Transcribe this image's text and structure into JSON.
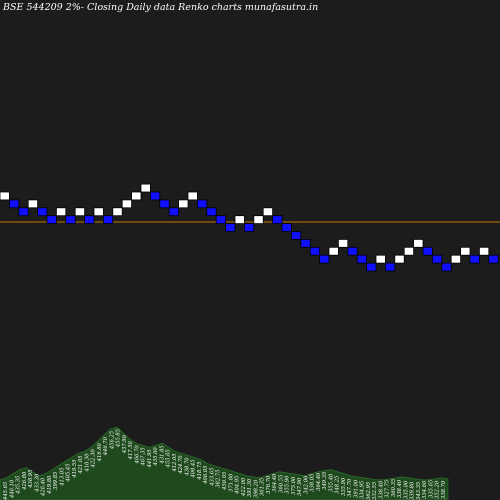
{
  "header": {
    "title": "BSE 544209 2%-  Closing Daily data  Renko  charts munafasutra.in"
  },
  "colors": {
    "background": "#1c1c1c",
    "up_brick": "#ffffff",
    "down_brick": "#1010ff",
    "brick_border": "#000000",
    "reference_line": "#c87800",
    "volume_fill": "#1e4a1e",
    "volume_edge": "#2f7a2f"
  },
  "chart_data": {
    "type": "renko",
    "title": "BSE 544209 2%-  Closing Daily data  Renko  charts munafasutra.in",
    "brick_size_note": "2%",
    "bricks": [
      {
        "level": 0,
        "dir": "up"
      },
      {
        "level": -1,
        "dir": "down"
      },
      {
        "level": -2,
        "dir": "down"
      },
      {
        "level": -1,
        "dir": "up"
      },
      {
        "level": -2,
        "dir": "down"
      },
      {
        "level": -3,
        "dir": "down"
      },
      {
        "level": -2,
        "dir": "up"
      },
      {
        "level": -3,
        "dir": "down"
      },
      {
        "level": -2,
        "dir": "up"
      },
      {
        "level": -3,
        "dir": "down"
      },
      {
        "level": -2,
        "dir": "up"
      },
      {
        "level": -3,
        "dir": "down"
      },
      {
        "level": -2,
        "dir": "up"
      },
      {
        "level": -1,
        "dir": "up"
      },
      {
        "level": 0,
        "dir": "up"
      },
      {
        "level": 1,
        "dir": "up"
      },
      {
        "level": 0,
        "dir": "down"
      },
      {
        "level": -1,
        "dir": "down"
      },
      {
        "level": -2,
        "dir": "down"
      },
      {
        "level": -1,
        "dir": "up"
      },
      {
        "level": 0,
        "dir": "up"
      },
      {
        "level": -1,
        "dir": "down"
      },
      {
        "level": -2,
        "dir": "down"
      },
      {
        "level": -3,
        "dir": "down"
      },
      {
        "level": -4,
        "dir": "down"
      },
      {
        "level": -3,
        "dir": "up"
      },
      {
        "level": -4,
        "dir": "down"
      },
      {
        "level": -3,
        "dir": "up"
      },
      {
        "level": -2,
        "dir": "up"
      },
      {
        "level": -3,
        "dir": "down"
      },
      {
        "level": -4,
        "dir": "down"
      },
      {
        "level": -5,
        "dir": "down"
      },
      {
        "level": -6,
        "dir": "down"
      },
      {
        "level": -7,
        "dir": "down"
      },
      {
        "level": -8,
        "dir": "down"
      },
      {
        "level": -7,
        "dir": "up"
      },
      {
        "level": -6,
        "dir": "up"
      },
      {
        "level": -7,
        "dir": "down"
      },
      {
        "level": -8,
        "dir": "down"
      },
      {
        "level": -9,
        "dir": "down"
      },
      {
        "level": -8,
        "dir": "up"
      },
      {
        "level": -9,
        "dir": "down"
      },
      {
        "level": -8,
        "dir": "up"
      },
      {
        "level": -7,
        "dir": "up"
      },
      {
        "level": -6,
        "dir": "up"
      },
      {
        "level": -7,
        "dir": "down"
      },
      {
        "level": -8,
        "dir": "down"
      },
      {
        "level": -9,
        "dir": "down"
      },
      {
        "level": -8,
        "dir": "up"
      },
      {
        "level": -7,
        "dir": "up"
      },
      {
        "level": -8,
        "dir": "down"
      },
      {
        "level": -7,
        "dir": "up"
      },
      {
        "level": -8,
        "dir": "down"
      }
    ],
    "price_labels": [
      "445.65",
      "446.10",
      "435.35",
      "426.80",
      "438.95",
      "433.30",
      "426.40",
      "419.80",
      "399.85",
      "413.05",
      "405.45",
      "419.55",
      "421.05",
      "410.30",
      "422.30",
      "416.80",
      "446.70",
      "456.25",
      "455.85",
      "437.90",
      "417.50",
      "466.70",
      "467.35",
      "441.95",
      "435.00",
      "431.85",
      "455.05",
      "412.05",
      "424.70",
      "438.70",
      "408.45",
      "418.75",
      "406.05",
      "433.65",
      "382.75",
      "450.05",
      "371.80",
      "404.95",
      "422.00",
      "391.30",
      "398.20",
      "361.35",
      "376.70",
      "364.40",
      "360.55",
      "355.90",
      "375.00",
      "347.90",
      "342.00",
      "338.05",
      "364.40",
      "349.35",
      "355.40",
      "348.25",
      "335.90",
      "347.70",
      "391.00",
      "334.95",
      "362.95",
      "332.55",
      "338.40",
      "327.75",
      "360.35",
      "338.40",
      "335.00",
      "339.80",
      "343.35",
      "334.60",
      "335.65",
      "352.20",
      "338.70"
    ],
    "volume_profile": [
      12,
      14,
      18,
      22,
      24,
      20,
      16,
      18,
      22,
      26,
      30,
      34,
      38,
      40,
      44,
      50,
      56,
      62,
      64,
      58,
      52,
      48,
      46,
      44,
      46,
      48,
      44,
      40,
      38,
      36,
      34,
      32,
      28,
      26,
      24,
      22,
      20,
      18,
      16,
      15,
      14,
      16,
      18,
      20,
      19,
      18,
      17,
      16,
      18,
      20,
      21,
      22,
      20,
      18,
      16,
      15,
      14,
      13,
      12,
      12,
      13,
      14,
      15,
      14,
      13,
      12,
      12,
      13,
      14,
      13
    ]
  }
}
